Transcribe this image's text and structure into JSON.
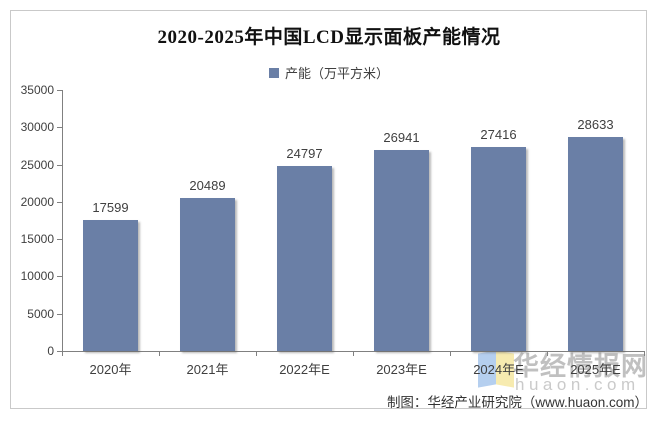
{
  "chart": {
    "title": "2020-2025年中国LCD显示面板产能情况",
    "legend_label": "产能（万平方米）",
    "caption": "制图：华经产业研究院（www.huaon.com）"
  },
  "watermark": {
    "brand": "华经情报网",
    "domain": "huaon.com",
    "logo": "open-book-logo",
    "logo_left_color": "#A9C7ED",
    "logo_right_color": "#F6E8A3"
  },
  "colors": {
    "bar": "#6A7FA6",
    "axis": "#808080",
    "frame_border": "#C9C9C9",
    "text": "#3F3F3F"
  },
  "chart_data": {
    "type": "bar",
    "categories": [
      "2020年",
      "2021年",
      "2022年E",
      "2023年E",
      "2024年E",
      "2025年E"
    ],
    "series": [
      {
        "name": "产能（万平方米）",
        "values": [
          17599,
          20489,
          24797,
          26941,
          27416,
          28633
        ]
      }
    ],
    "title": "2020-2025年中国LCD显示面板产能情况",
    "xlabel": "",
    "ylabel": "",
    "ylim": [
      0,
      35000
    ],
    "ytick_step": 5000,
    "yticks": [
      0,
      5000,
      10000,
      15000,
      20000,
      25000,
      30000,
      35000
    ],
    "grid": false,
    "legend_position": "top-center",
    "data_labels_shown": true
  }
}
